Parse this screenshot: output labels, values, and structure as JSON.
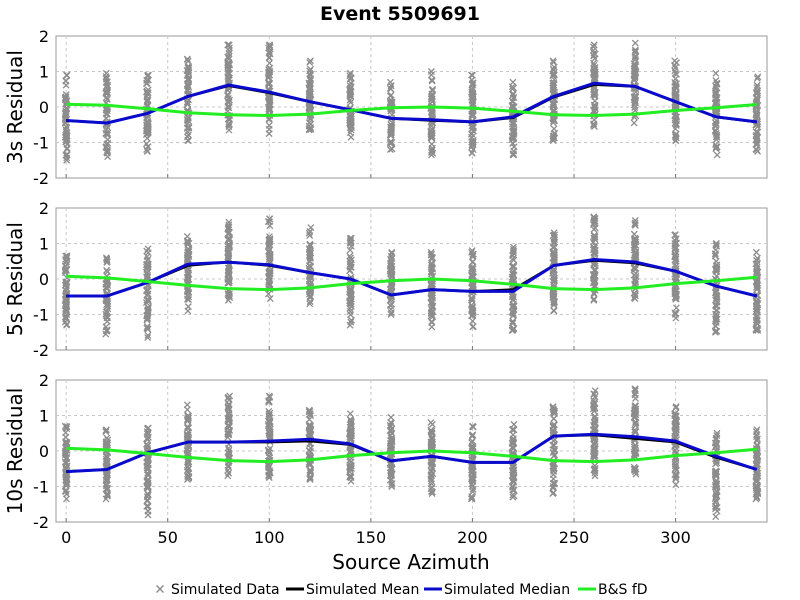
{
  "chart_data": {
    "type": "line",
    "title": "Event 5509691",
    "xlabel": "Source Azimuth",
    "xlim": [
      -5,
      345
    ],
    "x_ticks": [
      "0",
      "50",
      "100",
      "150",
      "200",
      "250",
      "300"
    ],
    "y_ticks": [
      "2",
      "1",
      "0",
      "-1",
      "-2"
    ],
    "x": [
      0,
      20,
      40,
      60,
      80,
      100,
      120,
      140,
      160,
      180,
      200,
      220,
      240,
      260,
      280,
      300,
      320,
      340
    ],
    "legend": {
      "position": "bottom",
      "items": [
        "Simulated Data",
        "Simulated Mean",
        "Simulated Median",
        "B&S fD"
      ]
    },
    "colors": {
      "simulated_data": "#8c8c8c",
      "simulated_mean": "#000000",
      "simulated_median": "#0a0acd",
      "bs_fd": "#22ee22"
    },
    "panels": [
      {
        "ylabel": "3s Residual",
        "ylim": [
          -2,
          2
        ],
        "data_range": {
          "min": [
            -1.5,
            -1.4,
            -1.25,
            -0.95,
            -0.65,
            -0.75,
            -0.65,
            -0.85,
            -1.2,
            -1.35,
            -1.3,
            -1.35,
            -0.95,
            -0.55,
            -0.45,
            -0.95,
            -1.35,
            -1.25
          ],
          "max": [
            0.9,
            0.95,
            0.9,
            1.35,
            1.75,
            1.75,
            1.3,
            0.95,
            0.7,
            1.0,
            0.9,
            0.7,
            1.3,
            1.75,
            1.8,
            1.3,
            0.95,
            0.85
          ]
        },
        "series": [
          {
            "name": "Simulated Mean",
            "values": [
              -0.38,
              -0.45,
              -0.18,
              0.3,
              0.6,
              0.4,
              0.15,
              -0.08,
              -0.32,
              -0.38,
              -0.42,
              -0.3,
              0.28,
              0.63,
              0.58,
              0.15,
              -0.28,
              -0.42
            ]
          },
          {
            "name": "Simulated Median",
            "values": [
              -0.38,
              -0.45,
              -0.18,
              0.3,
              0.62,
              0.42,
              0.15,
              -0.08,
              -0.32,
              -0.36,
              -0.42,
              -0.28,
              0.3,
              0.67,
              0.58,
              0.15,
              -0.28,
              -0.42
            ]
          },
          {
            "name": "B&S fD",
            "values": [
              0.08,
              0.05,
              -0.05,
              -0.16,
              -0.22,
              -0.24,
              -0.2,
              -0.1,
              -0.02,
              0.0,
              -0.03,
              -0.12,
              -0.22,
              -0.24,
              -0.2,
              -0.1,
              -0.02,
              0.07
            ]
          }
        ]
      },
      {
        "ylabel": "5s Residual",
        "ylim": [
          -2,
          2
        ],
        "data_range": {
          "min": [
            -1.3,
            -1.55,
            -1.65,
            -0.9,
            -0.6,
            -0.55,
            -0.7,
            -1.3,
            -1.0,
            -1.35,
            -1.35,
            -1.45,
            -0.9,
            -0.6,
            -0.55,
            -1.1,
            -1.5,
            -1.45
          ],
          "max": [
            0.65,
            0.6,
            0.85,
            1.2,
            1.6,
            1.7,
            1.45,
            1.15,
            0.75,
            0.75,
            0.8,
            0.9,
            1.3,
            1.75,
            1.65,
            1.25,
            1.0,
            0.75
          ]
        },
        "series": [
          {
            "name": "Simulated Mean",
            "values": [
              -0.48,
              -0.48,
              -0.1,
              0.38,
              0.48,
              0.38,
              0.18,
              0.0,
              -0.45,
              -0.3,
              -0.35,
              -0.3,
              0.38,
              0.52,
              0.45,
              0.22,
              -0.2,
              -0.48
            ]
          },
          {
            "name": "Simulated Median",
            "values": [
              -0.48,
              -0.48,
              -0.1,
              0.42,
              0.47,
              0.4,
              0.18,
              0.0,
              -0.45,
              -0.3,
              -0.35,
              -0.35,
              0.38,
              0.55,
              0.48,
              0.22,
              -0.2,
              -0.48
            ]
          },
          {
            "name": "B&S fD",
            "values": [
              0.08,
              0.03,
              -0.07,
              -0.18,
              -0.27,
              -0.3,
              -0.25,
              -0.13,
              -0.05,
              0.0,
              -0.05,
              -0.15,
              -0.27,
              -0.3,
              -0.25,
              -0.13,
              -0.05,
              0.05
            ]
          }
        ]
      },
      {
        "ylabel": "10s Residual",
        "ylim": [
          -2,
          2
        ],
        "data_range": {
          "min": [
            -1.35,
            -1.35,
            -1.8,
            -0.8,
            -0.7,
            -0.75,
            -0.8,
            -0.85,
            -1.0,
            -1.2,
            -1.35,
            -1.3,
            -1.2,
            -0.7,
            -0.65,
            -0.95,
            -1.85,
            -1.35
          ],
          "max": [
            0.7,
            0.6,
            0.65,
            1.3,
            1.55,
            1.55,
            1.15,
            1.05,
            0.95,
            0.8,
            0.7,
            0.75,
            1.25,
            1.7,
            1.75,
            1.25,
            0.5,
            0.6
          ]
        },
        "series": [
          {
            "name": "Simulated Mean",
            "values": [
              -0.58,
              -0.52,
              -0.05,
              0.25,
              0.25,
              0.25,
              0.28,
              0.18,
              -0.28,
              -0.15,
              -0.32,
              -0.32,
              0.42,
              0.45,
              0.35,
              0.25,
              -0.18,
              -0.52
            ]
          },
          {
            "name": "Simulated Median",
            "values": [
              -0.58,
              -0.52,
              -0.05,
              0.25,
              0.25,
              0.28,
              0.33,
              0.2,
              -0.28,
              -0.15,
              -0.32,
              -0.32,
              0.42,
              0.47,
              0.4,
              0.28,
              -0.15,
              -0.52
            ]
          },
          {
            "name": "B&S fD",
            "values": [
              0.08,
              0.03,
              -0.07,
              -0.18,
              -0.27,
              -0.3,
              -0.25,
              -0.13,
              -0.05,
              0.0,
              -0.05,
              -0.15,
              -0.27,
              -0.3,
              -0.25,
              -0.13,
              -0.05,
              0.05
            ]
          }
        ]
      }
    ]
  }
}
